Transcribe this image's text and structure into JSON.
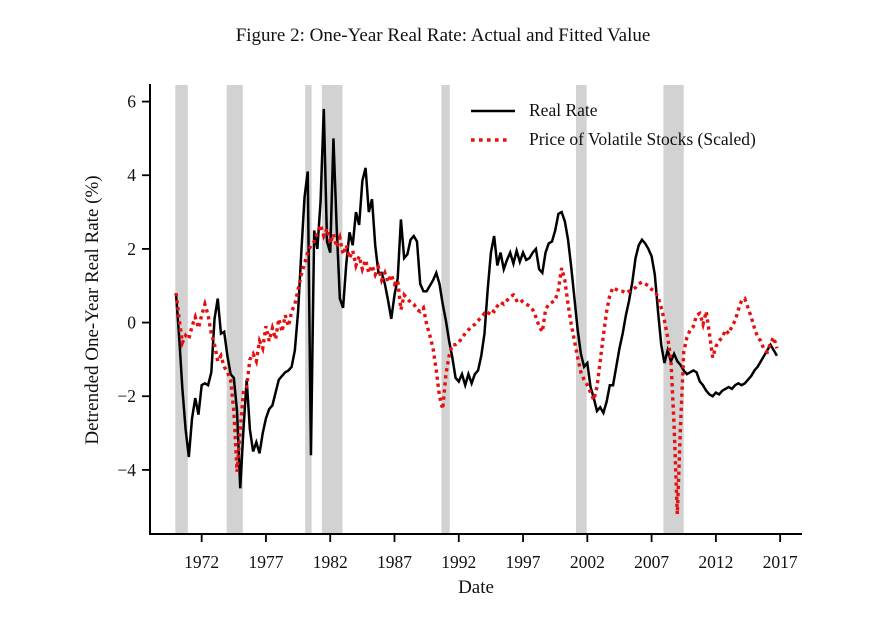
{
  "figure": {
    "title": "Figure 2: One-Year Real Rate: Actual and Fitted Value"
  },
  "chart_data": {
    "type": "line",
    "title": "Figure 2: One-Year Real Rate: Actual and Fitted Value",
    "xlabel": "Date",
    "ylabel": "Detrended One-Year Real Rate (%)",
    "xlim": [
      1967.98,
      2018.7
    ],
    "ylim": [
      -5.74,
      6.45
    ],
    "x_ticks": [
      1972,
      1977,
      1982,
      1987,
      1992,
      1997,
      2002,
      2007,
      2012,
      2017
    ],
    "y_ticks": [
      6,
      4,
      2,
      0,
      -2,
      -4
    ],
    "grid": false,
    "legend_position": "upper right",
    "x_start": 1970.0,
    "x_step": 0.25,
    "band_color": "#d2d2d2",
    "recession_bands": [
      [
        1969.95,
        1970.92
      ],
      [
        1973.94,
        1975.2
      ],
      [
        1980.05,
        1980.55
      ],
      [
        1981.35,
        1982.95
      ],
      [
        1990.65,
        1991.3
      ],
      [
        2001.12,
        2001.95
      ],
      [
        2007.92,
        2009.5
      ]
    ],
    "series": [
      {
        "name": "Real Rate",
        "color": "#000000",
        "style": "solid",
        "values": [
          0.8,
          -0.4,
          -1.8,
          -2.9,
          -3.65,
          -2.6,
          -2.05,
          -2.5,
          -1.7,
          -1.65,
          -1.7,
          -1.35,
          0.1,
          0.65,
          -0.3,
          -0.25,
          -0.9,
          -1.4,
          -1.5,
          -2.4,
          -4.5,
          -2.9,
          -1.55,
          -2.9,
          -3.5,
          -3.25,
          -3.55,
          -3.0,
          -2.6,
          -2.35,
          -2.25,
          -1.9,
          -1.55,
          -1.45,
          -1.35,
          -1.3,
          -1.2,
          -0.75,
          0.3,
          1.9,
          3.4,
          4.1,
          -3.6,
          2.5,
          2.0,
          3.3,
          5.8,
          2.2,
          1.9,
          5.0,
          2.6,
          0.65,
          0.4,
          1.6,
          2.45,
          2.1,
          3.0,
          2.65,
          3.85,
          4.2,
          3.0,
          3.35,
          2.1,
          1.35,
          1.35,
          1.05,
          0.6,
          0.1,
          0.75,
          1.2,
          2.8,
          1.75,
          1.85,
          2.25,
          2.35,
          2.2,
          1.05,
          0.85,
          0.85,
          1.0,
          1.15,
          1.35,
          1.05,
          0.5,
          0.05,
          -0.5,
          -0.95,
          -1.5,
          -1.6,
          -1.4,
          -1.7,
          -1.4,
          -1.65,
          -1.4,
          -1.3,
          -0.9,
          -0.3,
          0.9,
          1.9,
          2.35,
          1.55,
          1.9,
          1.45,
          1.7,
          1.9,
          1.6,
          1.95,
          1.65,
          1.9,
          1.7,
          1.75,
          1.9,
          2.0,
          1.45,
          1.35,
          1.9,
          2.15,
          2.2,
          2.5,
          2.95,
          3.0,
          2.75,
          2.25,
          1.5,
          0.65,
          -0.2,
          -0.85,
          -1.2,
          -1.1,
          -1.75,
          -2.05,
          -2.4,
          -2.3,
          -2.45,
          -2.15,
          -1.7,
          -1.7,
          -1.2,
          -0.7,
          -0.3,
          0.2,
          0.6,
          1.1,
          1.75,
          2.1,
          2.25,
          2.15,
          2.0,
          1.8,
          1.3,
          0.3,
          -0.6,
          -1.1,
          -0.75,
          -1.05,
          -0.85,
          -1.05,
          -1.15,
          -1.3,
          -1.4,
          -1.35,
          -1.3,
          -1.35,
          -1.6,
          -1.7,
          -1.85,
          -1.95,
          -2.0,
          -1.9,
          -1.95,
          -1.85,
          -1.8,
          -1.75,
          -1.8,
          -1.7,
          -1.65,
          -1.7,
          -1.65,
          -1.55,
          -1.45,
          -1.3,
          -1.2,
          -1.05,
          -0.9,
          -0.75,
          -0.6,
          -0.75,
          -0.9
        ]
      },
      {
        "name": "Price of Volatile Stocks (Scaled)",
        "color": "#e51010",
        "style": "dotted",
        "values": [
          0.8,
          0.1,
          -0.55,
          -0.35,
          -0.45,
          -0.1,
          0.15,
          -0.15,
          0.2,
          0.5,
          0.2,
          -0.3,
          -0.6,
          -1.05,
          -0.9,
          -1.2,
          -1.35,
          -1.55,
          -2.4,
          -4.05,
          -2.9,
          -1.85,
          -1.75,
          -1.0,
          -0.85,
          -1.05,
          -0.5,
          -0.7,
          -0.1,
          -0.5,
          -0.15,
          -0.45,
          0.1,
          -0.25,
          0.2,
          -0.1,
          0.3,
          0.5,
          0.9,
          1.3,
          1.6,
          1.9,
          2.1,
          2.2,
          2.45,
          2.65,
          2.35,
          2.55,
          2.15,
          2.4,
          2.05,
          2.3,
          1.85,
          2.1,
          1.75,
          1.95,
          1.55,
          1.8,
          1.45,
          1.7,
          1.35,
          1.55,
          1.3,
          1.5,
          1.15,
          1.35,
          1.1,
          1.3,
          1.05,
          1.15,
          0.35,
          0.75,
          0.65,
          0.55,
          0.5,
          0.35,
          0.3,
          0.4,
          -0.05,
          -0.35,
          -0.7,
          -1.3,
          -2.0,
          -2.35,
          -1.4,
          -0.9,
          -0.6,
          -0.6,
          -0.55,
          -0.4,
          -0.3,
          -0.2,
          -0.1,
          -0.05,
          0.05,
          0.15,
          0.25,
          0.2,
          0.35,
          0.3,
          0.45,
          0.55,
          0.5,
          0.6,
          0.7,
          0.75,
          0.6,
          0.65,
          0.55,
          0.5,
          0.45,
          0.35,
          0.15,
          -0.1,
          -0.25,
          0.35,
          0.5,
          0.55,
          0.6,
          0.9,
          1.48,
          1.15,
          0.5,
          -0.05,
          -0.5,
          -0.95,
          -1.35,
          -1.55,
          -1.7,
          -1.9,
          -2.1,
          -1.75,
          -1.05,
          -0.35,
          0.3,
          0.75,
          0.95,
          0.9,
          0.85,
          0.85,
          0.8,
          0.85,
          0.9,
          0.95,
          1.05,
          1.1,
          1.05,
          1.0,
          0.9,
          0.85,
          0.7,
          0.4,
          0.05,
          -0.4,
          -1.0,
          -2.8,
          -5.2,
          -2.8,
          -0.8,
          -0.4,
          -0.2,
          -0.1,
          0.2,
          0.25,
          -0.05,
          0.3,
          -0.3,
          -0.95,
          -0.65,
          -0.5,
          -0.4,
          -0.2,
          -0.3,
          -0.1,
          0.05,
          0.35,
          0.6,
          0.65,
          0.4,
          0.15,
          -0.15,
          -0.4,
          -0.5,
          -0.75,
          -0.8,
          -0.55,
          -0.4,
          -0.7
        ]
      }
    ]
  }
}
